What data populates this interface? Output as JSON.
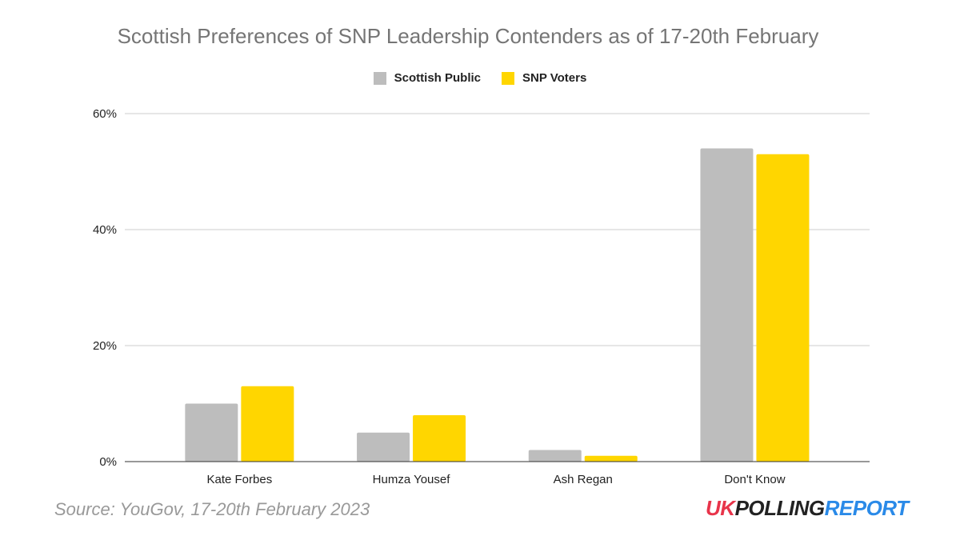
{
  "chart_data": {
    "type": "bar",
    "title": "Scottish Preferences of SNP Leadership Contenders as of 17-20th February",
    "categories": [
      "Kate Forbes",
      "Humza Yousef",
      "Ash Regan",
      "Don't Know"
    ],
    "series": [
      {
        "name": "Scottish Public",
        "color": "#bdbdbd",
        "values": [
          10,
          5,
          2,
          54
        ]
      },
      {
        "name": "SNP Voters",
        "color": "#ffd600",
        "values": [
          13,
          8,
          1,
          53
        ]
      }
    ],
    "yticks": [
      "0%",
      "20%",
      "40%",
      "60%"
    ],
    "ylim": [
      0,
      60
    ],
    "grid": true,
    "legend": "top",
    "xlabel": "",
    "ylabel": ""
  },
  "source": "Source: YouGov, 17-20th February 2023",
  "logo": {
    "part1": "UK",
    "part2": "POLLING",
    "part3": "REPORT",
    "colors": [
      "#e8344a",
      "#222222",
      "#2a8ae8"
    ]
  }
}
